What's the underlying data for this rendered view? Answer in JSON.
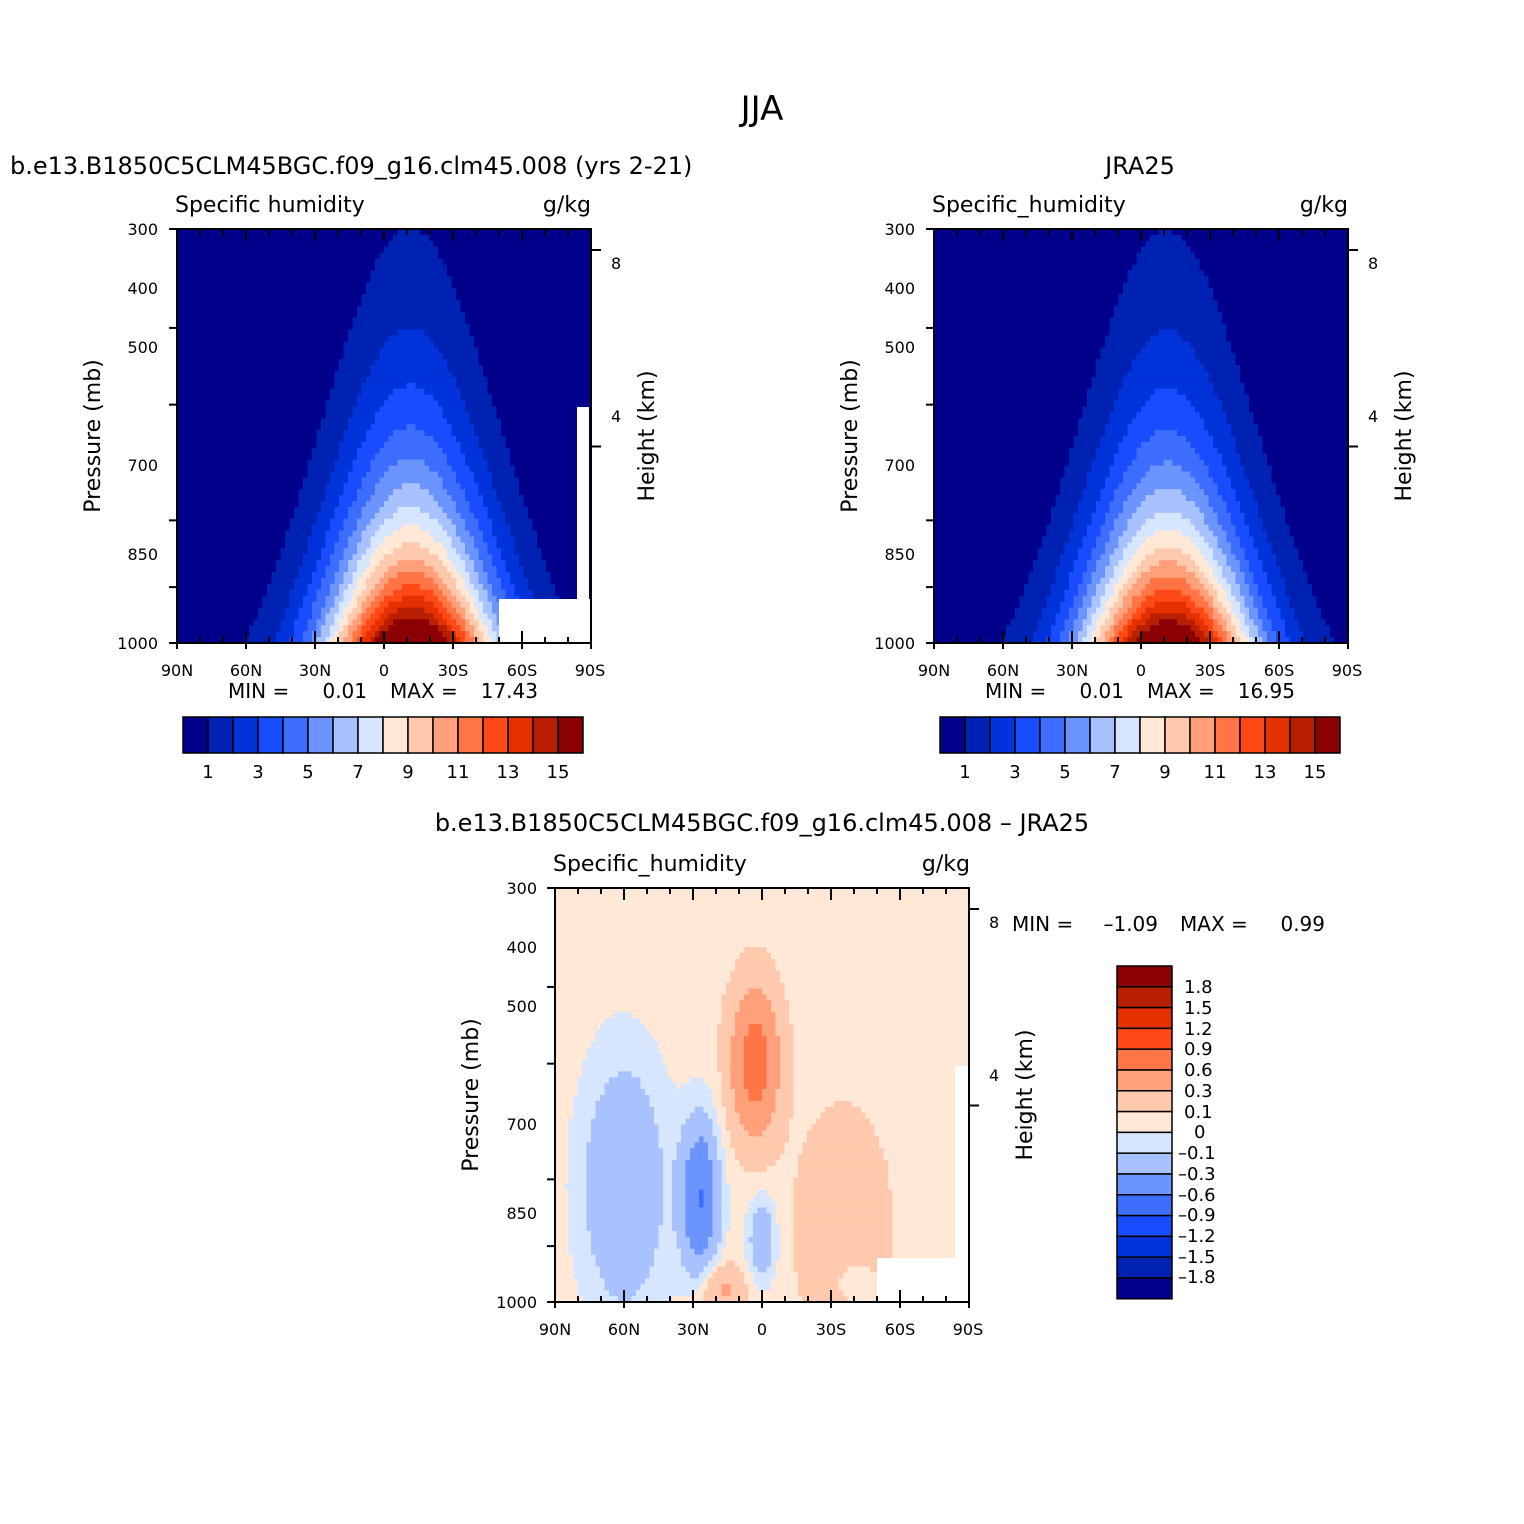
{
  "page_title": "JJA",
  "chart_data": [
    {
      "id": "model",
      "type": "heatmap",
      "title": "b.e13.B1850C5CLM45BGC.f09_g16.clm45.008 (yrs 2-21)",
      "left_label": "Specific humidity",
      "right_label": "g/kg",
      "ylabel": "Pressure (mb)",
      "y2label": "Height (km)",
      "x_ticks": [
        "90N",
        "60N",
        "30N",
        "0",
        "30S",
        "60S",
        "90S"
      ],
      "y_ticks": [
        "300",
        "400",
        "500",
        "700",
        "850",
        "1000"
      ],
      "y2_ticks": [
        "8",
        "4"
      ],
      "min_label": "MIN =",
      "min_value": "0.01",
      "max_label": "MAX =",
      "max_value": "17.43",
      "colorbar_labels": [
        "1",
        "3",
        "5",
        "7",
        "9",
        "11",
        "13",
        "15"
      ],
      "peak_lat": -10,
      "peak_value": 17.43,
      "ylim": [
        1000,
        300
      ],
      "xlim": [
        90,
        -90
      ]
    },
    {
      "id": "obs",
      "type": "heatmap",
      "title": "JRA25",
      "left_label": "Specific_humidity",
      "right_label": "g/kg",
      "ylabel": "Pressure (mb)",
      "y2label": "Height (km)",
      "x_ticks": [
        "90N",
        "60N",
        "30N",
        "0",
        "30S",
        "60S",
        "90S"
      ],
      "y_ticks": [
        "300",
        "400",
        "500",
        "700",
        "850",
        "1000"
      ],
      "y2_ticks": [
        "8",
        "4"
      ],
      "min_label": "MIN =",
      "min_value": "0.01",
      "max_label": "MAX =",
      "max_value": "16.95",
      "colorbar_labels": [
        "1",
        "3",
        "5",
        "7",
        "9",
        "11",
        "13",
        "15"
      ],
      "peak_lat": -10,
      "peak_value": 16.95,
      "ylim": [
        1000,
        300
      ],
      "xlim": [
        90,
        -90
      ]
    },
    {
      "id": "diff",
      "type": "heatmap",
      "title": "b.e13.B1850C5CLM45BGC.f09_g16.clm45.008 – JRA25",
      "left_label": "Specific_humidity",
      "right_label": "g/kg",
      "ylabel": "Pressure (mb)",
      "y2label": "Height (km)",
      "x_ticks": [
        "90N",
        "60N",
        "30N",
        "0",
        "30S",
        "60S",
        "90S"
      ],
      "y_ticks": [
        "300",
        "400",
        "500",
        "700",
        "850",
        "1000"
      ],
      "y2_ticks": [
        "8",
        "4"
      ],
      "min_label": "MIN =",
      "min_value": "–1.09",
      "max_label": "MAX =",
      "max_value": "0.99",
      "colorbar_labels": [
        "1.8",
        "1.5",
        "1.2",
        "0.9",
        "0.6",
        "0.3",
        "0.1",
        "0",
        "–0.1",
        "–0.3",
        "–0.6",
        "–0.9",
        "–1.2",
        "–1.5",
        "–1.8"
      ],
      "ylim": [
        1000,
        300
      ],
      "xlim": [
        90,
        -90
      ]
    }
  ],
  "palette": [
    "#00008b",
    "#0022b2",
    "#0033d9",
    "#1a4cff",
    "#3d6dff",
    "#6b94ff",
    "#a8c2ff",
    "#d6e6ff",
    "#ffe8d6",
    "#ffc9ad",
    "#ffa07a",
    "#ff7545",
    "#ff4a17",
    "#e53000",
    "#b81e00",
    "#8b0000"
  ]
}
